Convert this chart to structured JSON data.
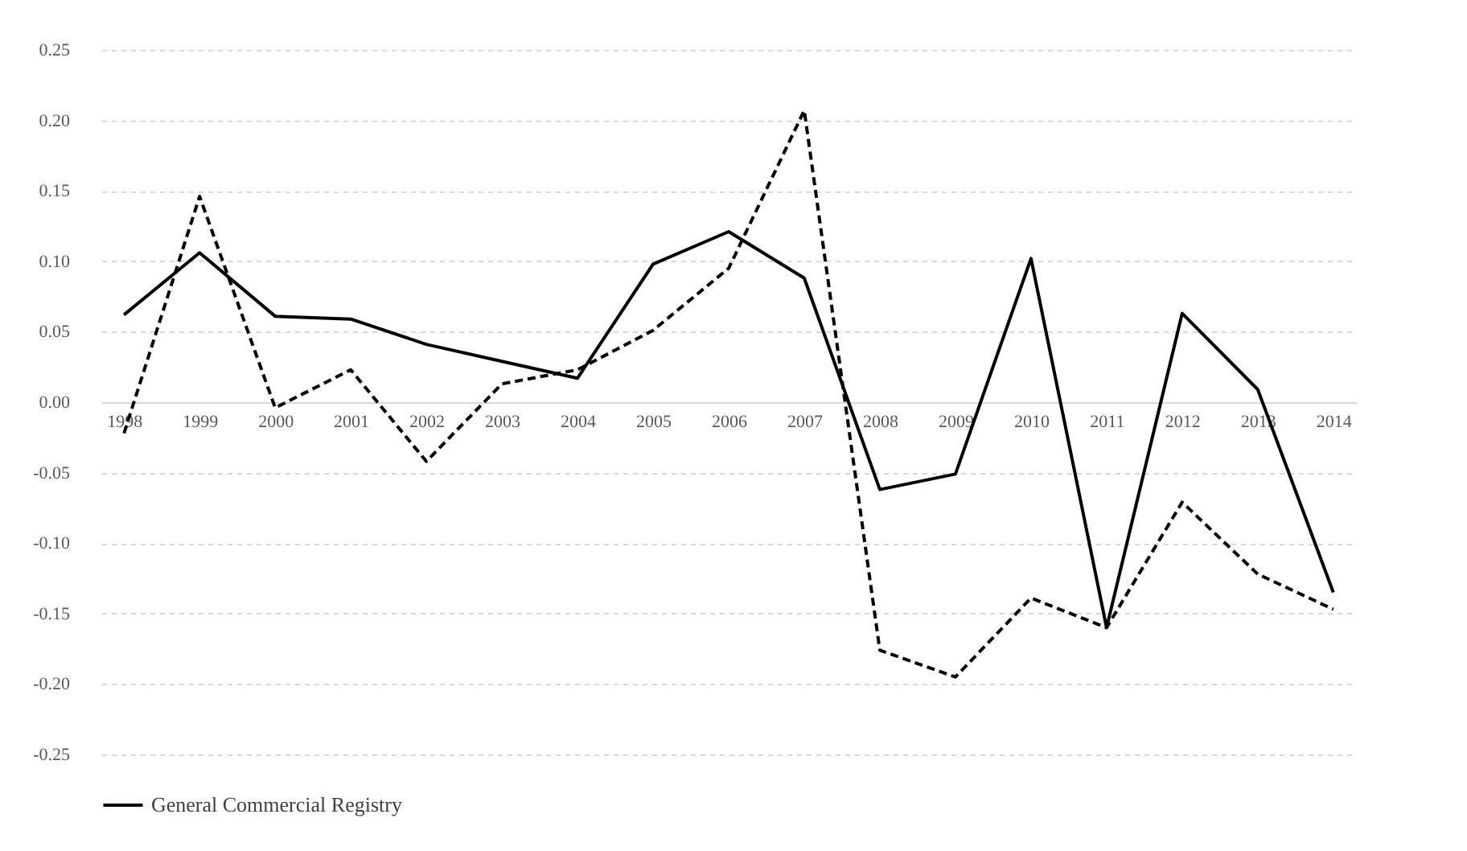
{
  "chart_data": {
    "type": "line",
    "categories": [
      "1998",
      "1999",
      "2000",
      "2001",
      "2002",
      "2003",
      "2004",
      "2005",
      "2006",
      "2007",
      "2008",
      "2009",
      "2010",
      "2011",
      "2012",
      "2013",
      "2014"
    ],
    "series": [
      {
        "name": "General Commercial Registry",
        "color": "#000000",
        "line_style": "solid",
        "values": [
          0.062,
          0.106,
          0.061,
          0.059,
          0.041,
          0.029,
          0.017,
          0.098,
          0.121,
          0.088,
          -0.062,
          -0.051,
          0.102,
          -0.16,
          0.063,
          0.009,
          -0.135
        ]
      },
      {
        "color": "#000000",
        "line_style": "dashed",
        "values": [
          -0.022,
          0.146,
          -0.004,
          0.023,
          -0.042,
          0.013,
          0.023,
          0.051,
          0.095,
          0.207,
          -0.176,
          -0.195,
          -0.139,
          -0.16,
          -0.071,
          -0.122,
          -0.147
        ]
      }
    ],
    "ylim": [
      -0.25,
      0.25
    ],
    "yticks": [
      {
        "value": -0.25,
        "label": "-0.25"
      },
      {
        "value": -0.2,
        "label": "-0.20"
      },
      {
        "value": -0.15,
        "label": "-0.15"
      },
      {
        "value": -0.1,
        "label": "-0.10"
      },
      {
        "value": -0.05,
        "label": "-0.05"
      },
      {
        "value": 0,
        "label": "0.00"
      },
      {
        "value": 0.05,
        "label": "0.05"
      },
      {
        "value": 0.1,
        "label": "0.10"
      },
      {
        "value": 0.15,
        "label": "0.15"
      },
      {
        "value": 0.2,
        "label": "0.20"
      },
      {
        "value": 0.25,
        "label": "0.25"
      }
    ],
    "grid": "y",
    "legend": "bottom"
  }
}
